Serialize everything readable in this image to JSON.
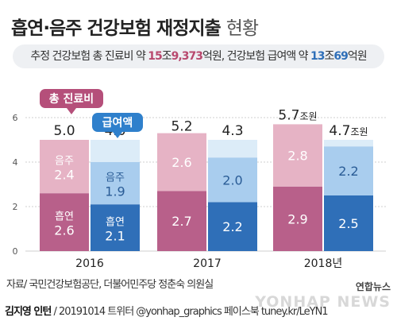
{
  "title": {
    "main": "흡연·음주 건강보험 재정지출",
    "sub": "현황"
  },
  "estimate": {
    "p1": "추정 건강보험 총 진료비 약 ",
    "n1": "15",
    "u1": "조",
    "n2": "9,373",
    "u2": "억원, 건강보험 급여액 약 ",
    "n3": "13",
    "u3": "조",
    "n4": "69",
    "u4": "억원"
  },
  "legend": {
    "total_label": "총 진료비",
    "benefit_label": "급여액"
  },
  "colors": {
    "total_smoking": "#b8608a",
    "total_drinking": "#e6b3c5",
    "total_empty": "#f6e5ec",
    "benefit_smoking": "#2f6fb8",
    "benefit_drinking": "#a9cdee",
    "benefit_empty": "#dcecf8",
    "total_tag": "#b54f7a",
    "benefit_tag": "#2f80cc"
  },
  "chart_data": {
    "type": "bar",
    "categories": [
      "2016",
      "2017",
      "2018년"
    ],
    "ylim": [
      0,
      6
    ],
    "yticks": [
      "0",
      "2",
      "4",
      "6"
    ],
    "series": [
      {
        "name": "총 진료비",
        "segment_labels": [
          "흡연",
          "음주"
        ],
        "smoking": [
          2.6,
          2.7,
          2.9
        ],
        "drinking": [
          2.4,
          2.6,
          2.8
        ],
        "totals": [
          5.0,
          5.2,
          5.7
        ],
        "total_labels": [
          "5.0",
          "5.2",
          "5.7조원"
        ]
      },
      {
        "name": "급여액",
        "segment_labels": [
          "흡연",
          "음주"
        ],
        "smoking": [
          2.1,
          2.2,
          2.5
        ],
        "drinking": [
          1.9,
          2.0,
          2.2
        ],
        "totals": [
          4.0,
          4.3,
          4.7
        ],
        "total_labels": [
          "4.0",
          "4.3",
          "4.7조원"
        ]
      }
    ]
  },
  "footer": {
    "source": "자료/ 국민건강보험공단, 더불어민주당 정춘숙 의원실",
    "author": "김지영 인턴",
    "credit": " / 20191014  트위터 @yonhap_graphics  페이스북 tuney.kr/LeYN1",
    "brand": "연합뉴스",
    "watermark": "YONHAP NEWS"
  }
}
